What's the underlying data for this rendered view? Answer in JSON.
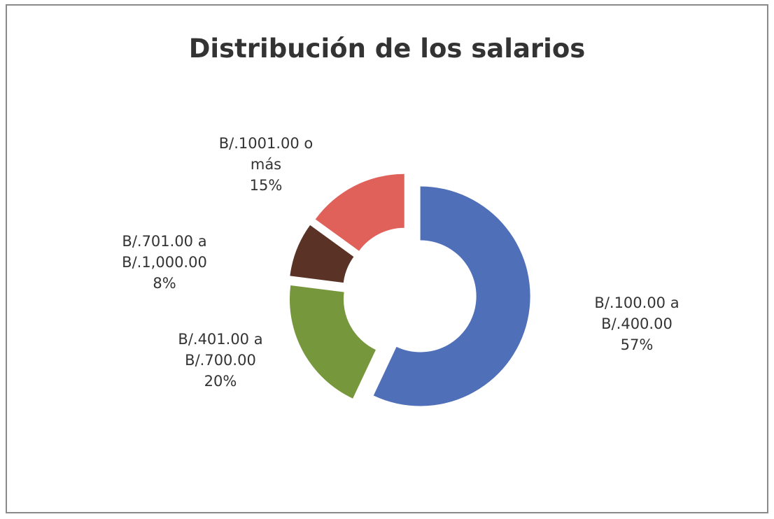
{
  "chart_data": {
    "type": "donut",
    "title": "Distribución de los salarios",
    "categories": [
      "B/.100.00 a B/.400.00",
      "B/.401.00 a B/.700.00",
      "B/.701.00 a B/.1,000.00",
      "B/.1001.00 o más"
    ],
    "values": [
      57,
      20,
      8,
      15
    ],
    "value_labels": [
      "57%",
      "20%",
      "8%",
      "15%"
    ],
    "colors": [
      "#4f6fb8",
      "#77973d",
      "#5a3326",
      "#e0605a"
    ]
  }
}
